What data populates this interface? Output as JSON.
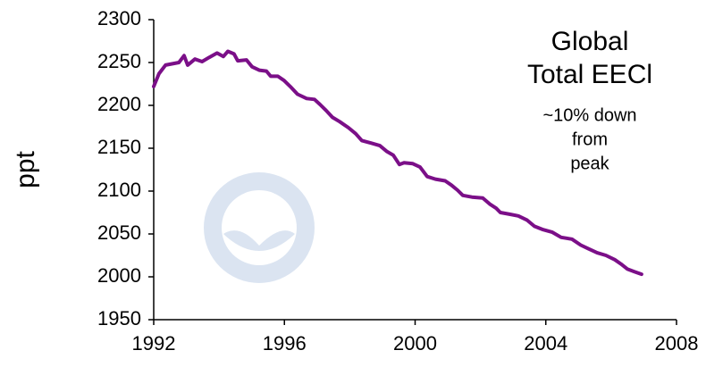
{
  "chart_data": {
    "type": "line",
    "ylabel": "ppt",
    "annotations": [
      "Global",
      "Total EECl",
      "~10% down",
      "from",
      "peak"
    ],
    "color": "#7b0f88",
    "xlim": [
      1992,
      2008
    ],
    "xticks": [
      1992,
      1996,
      2000,
      2004,
      2008
    ],
    "ylim": [
      1950,
      2300
    ],
    "yticks": [
      1950,
      2000,
      2050,
      2100,
      2150,
      2200,
      2250,
      2300
    ],
    "x": [
      1992.0,
      1992.16,
      1992.36,
      1992.63,
      1992.77,
      1992.93,
      1993.04,
      1993.26,
      1993.48,
      1993.7,
      1993.94,
      1994.13,
      1994.27,
      1994.46,
      1994.57,
      1994.84,
      1995.01,
      1995.23,
      1995.45,
      1995.58,
      1995.8,
      1995.99,
      1996.18,
      1996.4,
      1996.68,
      1996.92,
      1997.09,
      1997.28,
      1997.47,
      1997.69,
      1997.96,
      1998.18,
      1998.37,
      1998.65,
      1998.92,
      1999.14,
      1999.33,
      1999.52,
      1999.66,
      1999.93,
      2000.15,
      2000.37,
      2000.62,
      2000.92,
      2001.11,
      2001.3,
      2001.46,
      2001.74,
      2002.07,
      2002.28,
      2002.48,
      2002.61,
      2002.89,
      2003.16,
      2003.43,
      2003.65,
      2003.92,
      2004.2,
      2004.47,
      2004.8,
      2005.07,
      2005.29,
      2005.57,
      2005.84,
      2006.11,
      2006.3,
      2006.5,
      2006.71,
      2006.93
    ],
    "values": [
      2222,
      2237,
      2247,
      2249,
      2250,
      2258,
      2247,
      2254,
      2251,
      2256,
      2261,
      2257,
      2263,
      2260,
      2252,
      2253,
      2245,
      2241,
      2240,
      2234,
      2234,
      2229,
      2222,
      2213,
      2208,
      2207,
      2201,
      2194,
      2186,
      2181,
      2174,
      2167,
      2159,
      2156,
      2153,
      2146,
      2142,
      2131,
      2133,
      2132,
      2128,
      2117,
      2114,
      2112,
      2107,
      2101,
      2095,
      2093,
      2092,
      2085,
      2080,
      2075,
      2073,
      2071,
      2066,
      2059,
      2055,
      2052,
      2046,
      2044,
      2037,
      2033,
      2028,
      2025,
      2020,
      2015,
      2009,
      2006,
      2003
    ]
  }
}
